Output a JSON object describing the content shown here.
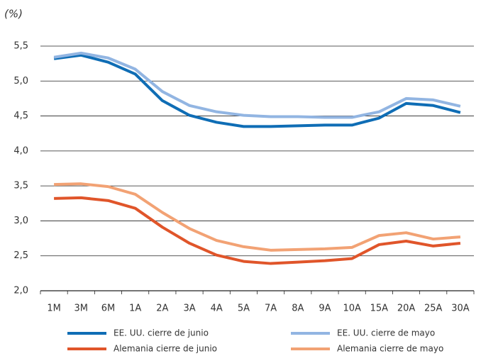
{
  "chart_data": {
    "type": "line",
    "ylabel": "(%)",
    "categories": [
      "1M",
      "3M",
      "6M",
      "1A",
      "2A",
      "3A",
      "4A",
      "5A",
      "7A",
      "8A",
      "9A",
      "10A",
      "15A",
      "20A",
      "25A",
      "30A"
    ],
    "series": [
      {
        "name": "EE. UU. cierre de junio",
        "color": "#0f6db5",
        "values": [
          5.32,
          5.37,
          5.27,
          5.1,
          4.72,
          4.51,
          4.41,
          4.35,
          4.35,
          4.36,
          4.37,
          4.37,
          4.47,
          4.68,
          4.65,
          4.55
        ]
      },
      {
        "name": "EE. UU. cierre de mayo",
        "color": "#92b5e2",
        "values": [
          5.34,
          5.4,
          5.33,
          5.17,
          4.85,
          4.65,
          4.56,
          4.51,
          4.49,
          4.49,
          4.48,
          4.48,
          4.56,
          4.75,
          4.73,
          4.64
        ]
      },
      {
        "name": "Alemania cierre de junio",
        "color": "#e0552a",
        "values": [
          3.32,
          3.33,
          3.29,
          3.18,
          2.91,
          2.68,
          2.51,
          2.42,
          2.39,
          2.41,
          2.43,
          2.46,
          2.66,
          2.71,
          2.64,
          2.68
        ]
      },
      {
        "name": "Alemania cierre de mayo",
        "color": "#f2a274",
        "values": [
          3.52,
          3.53,
          3.49,
          3.38,
          3.12,
          2.89,
          2.72,
          2.63,
          2.58,
          2.59,
          2.6,
          2.62,
          2.79,
          2.83,
          2.74,
          2.77
        ]
      }
    ],
    "ylim": [
      2.0,
      5.5
    ],
    "yticks": [
      {
        "value": 2.0,
        "label": "2,0"
      },
      {
        "value": 2.5,
        "label": "2,5"
      },
      {
        "value": 3.0,
        "label": "3,0"
      },
      {
        "value": 3.5,
        "label": "3,5"
      },
      {
        "value": 4.0,
        "label": "4,0"
      },
      {
        "value": 4.5,
        "label": "4,5"
      },
      {
        "value": 5.0,
        "label": "5,0"
      },
      {
        "value": 5.5,
        "label": "5,5"
      }
    ],
    "grid": true
  }
}
